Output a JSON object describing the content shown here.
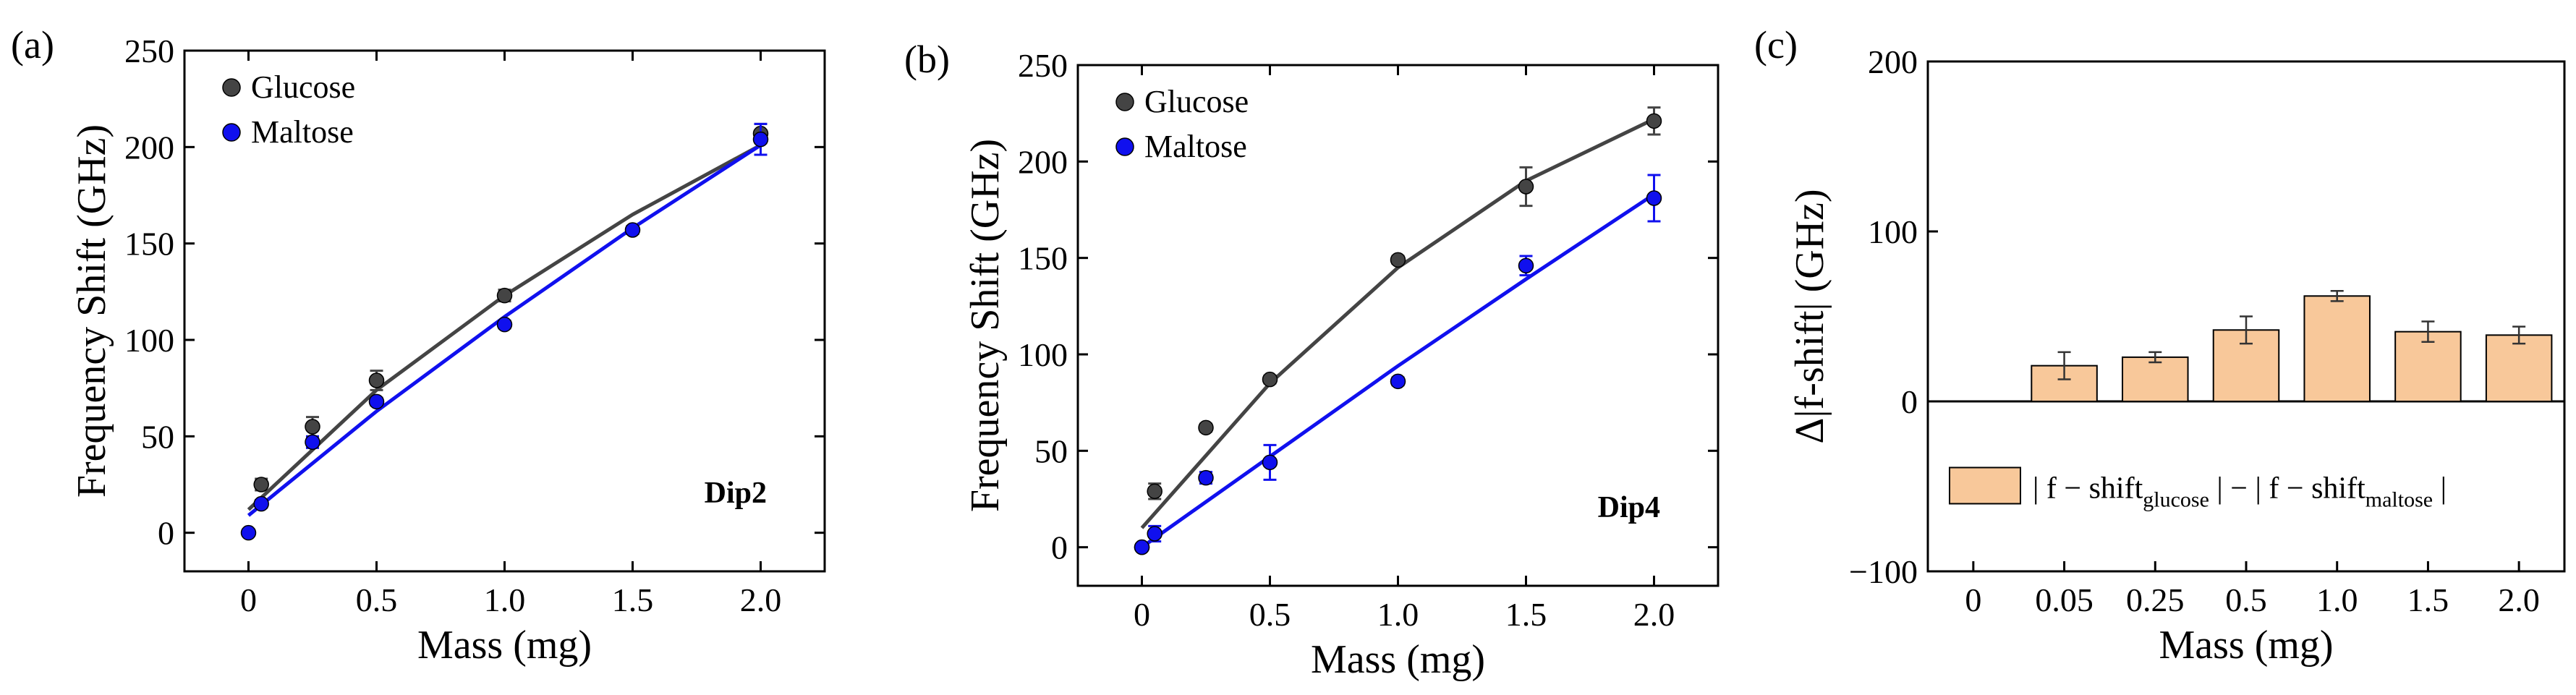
{
  "chart_data": [
    {
      "panel_label": "(a)",
      "type": "scatter",
      "xlabel": "Mass (mg)",
      "ylabel": "Frequency Shift (GHz)",
      "xlim": [
        -0.25,
        2.25
      ],
      "ylim": [
        -20,
        250
      ],
      "x_ticks": [
        0,
        0.5,
        1.0,
        1.5,
        2.0
      ],
      "x_tick_labels": [
        "0",
        "0.5",
        "1.0",
        "1.5",
        "2.0"
      ],
      "y_ticks": [
        0,
        50,
        100,
        150,
        200,
        250
      ],
      "y_tick_labels": [
        "0",
        "50",
        "100",
        "150",
        "200",
        "250"
      ],
      "annotation": "Dip2",
      "legend_position": "top-left",
      "series": [
        {
          "name": "Glucose",
          "color": "#444444",
          "x": [
            0.05,
            0.25,
            0.5,
            1.0,
            2.0
          ],
          "y": [
            25,
            55,
            79,
            123,
            207
          ],
          "err": [
            3,
            5,
            5,
            3,
            5
          ],
          "fit": [
            [
              0,
              12
            ],
            [
              0.5,
              74
            ],
            [
              1.0,
              123
            ],
            [
              1.5,
              165
            ],
            [
              2.0,
              201
            ]
          ]
        },
        {
          "name": "Maltose",
          "color": "#1010ee",
          "x": [
            0,
            0.05,
            0.25,
            0.5,
            1.0,
            1.5,
            2.0
          ],
          "y": [
            0,
            15,
            47,
            68,
            108,
            157,
            204
          ],
          "err": [
            1,
            2,
            3,
            2,
            2,
            2,
            8
          ],
          "fit": [
            [
              0,
              9
            ],
            [
              0.5,
              63
            ],
            [
              1.0,
              112
            ],
            [
              1.5,
              158
            ],
            [
              2.0,
              201
            ]
          ]
        }
      ]
    },
    {
      "panel_label": "(b)",
      "type": "scatter",
      "xlabel": "Mass (mg)",
      "ylabel": "Frequency Shift (GHz)",
      "xlim": [
        -0.25,
        2.25
      ],
      "ylim": [
        -20,
        250
      ],
      "x_ticks": [
        0,
        0.5,
        1.0,
        1.5,
        2.0
      ],
      "x_tick_labels": [
        "0",
        "0.5",
        "1.0",
        "1.5",
        "2.0"
      ],
      "y_ticks": [
        0,
        50,
        100,
        150,
        200,
        250
      ],
      "y_tick_labels": [
        "0",
        "50",
        "100",
        "150",
        "200",
        "250"
      ],
      "annotation": "Dip4",
      "legend_position": "top-left",
      "series": [
        {
          "name": "Glucose",
          "color": "#444444",
          "x": [
            0,
            0.05,
            0.25,
            0.5,
            1.0,
            1.5,
            2.0
          ],
          "y": [
            0,
            29,
            62,
            87,
            149,
            187,
            221
          ],
          "err": [
            1,
            4,
            2,
            2,
            2,
            10,
            7
          ],
          "fit": [
            [
              0,
              10
            ],
            [
              0.5,
              85
            ],
            [
              1.0,
              145
            ],
            [
              1.5,
              190
            ],
            [
              2.0,
              222
            ]
          ]
        },
        {
          "name": "Maltose",
          "color": "#1010ee",
          "x": [
            0,
            0.05,
            0.25,
            0.5,
            1.0,
            1.5,
            2.0
          ],
          "y": [
            0,
            7,
            36,
            44,
            86,
            146,
            181
          ],
          "err": [
            1,
            4,
            3,
            9,
            2,
            5,
            12
          ],
          "fit": [
            [
              0,
              0
            ],
            [
              0.5,
              47
            ],
            [
              1.0,
              94
            ],
            [
              1.5,
              139
            ],
            [
              2.0,
              183
            ]
          ]
        }
      ]
    },
    {
      "panel_label": "(c)",
      "type": "bar",
      "xlabel": "Mass (mg)",
      "ylabel": "Δ|f-shift| (GHz)",
      "categories": [
        "0",
        "0.05",
        "0.25",
        "0.5",
        "1.0",
        "1.5",
        "2.0"
      ],
      "values": [
        null,
        21,
        26,
        42,
        62,
        41,
        39
      ],
      "err": [
        null,
        8,
        3,
        8,
        3,
        6,
        5
      ],
      "ylim": [
        -100,
        200
      ],
      "y_ticks": [
        -100,
        0,
        100,
        200
      ],
      "y_tick_labels": [
        "−100",
        "0",
        "100",
        "200"
      ],
      "bar_color": "#f8c89a",
      "legend_position": "lower-center",
      "legend": {
        "prefix": "| f − shift",
        "sub1": "glucose",
        "middle": " | − | f − shift",
        "sub2": "maltose",
        "suffix": " |"
      }
    }
  ]
}
